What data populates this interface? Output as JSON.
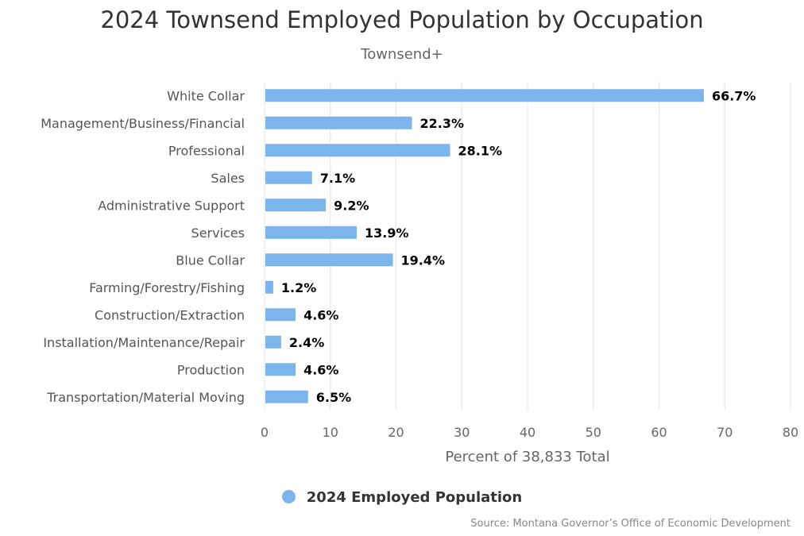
{
  "chart_data": {
    "type": "bar",
    "orientation": "horizontal",
    "title": "2024 Townsend Employed Population by Occupation",
    "subtitle": "Townsend+",
    "xlabel": "Percent of 38,833 Total",
    "ylabel": "",
    "xlim": [
      0,
      80
    ],
    "xticks": [
      0,
      10,
      20,
      30,
      40,
      50,
      60,
      70,
      80
    ],
    "grid": true,
    "legend_position": "bottom",
    "categories": [
      "White Collar",
      "Management/Business/Financial",
      "Professional",
      "Sales",
      "Administrative Support",
      "Services",
      "Blue Collar",
      "Farming/Forestry/Fishing",
      "Construction/Extraction",
      "Installation/Maintenance/Repair",
      "Production",
      "Transportation/Material Moving"
    ],
    "series": [
      {
        "name": "2024 Employed Population",
        "color": "#7cb5ec",
        "values": [
          66.7,
          22.3,
          28.1,
          7.1,
          9.2,
          13.9,
          19.4,
          1.2,
          4.6,
          2.4,
          4.6,
          6.5
        ],
        "labels": [
          "66.7%",
          "22.3%",
          "28.1%",
          "7.1%",
          "9.2%",
          "13.9%",
          "19.4%",
          "1.2%",
          "4.6%",
          "2.4%",
          "4.6%",
          "6.5%"
        ]
      }
    ]
  },
  "source": "Source: Montana Governor’s Office of Economic Development"
}
